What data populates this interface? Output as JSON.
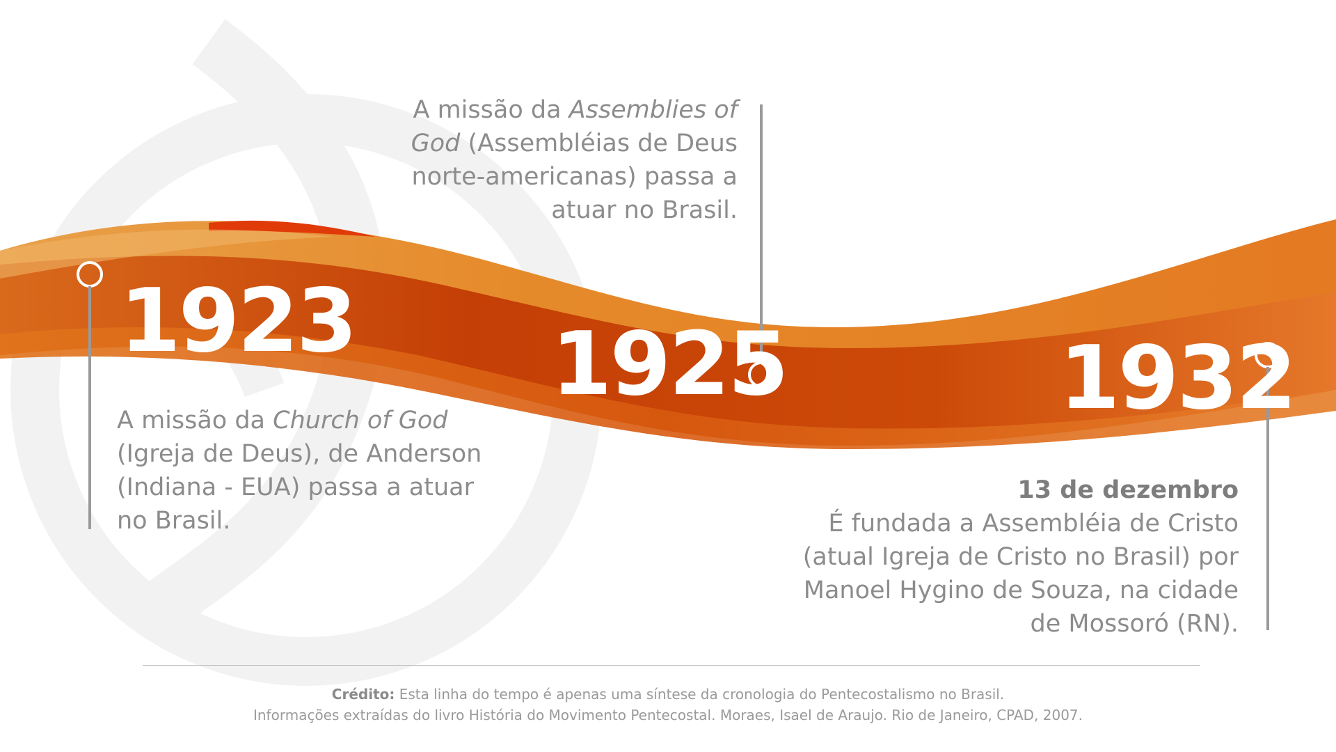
{
  "events": [
    {
      "year": "1923",
      "text_before": "A missão da ",
      "text_italic": "Church of God",
      "text_after": " (Igreja de Deus), de Anderson (Indiana - EUA) passa a atuar no Brasil."
    },
    {
      "year": "1925",
      "text_before": "A missão da ",
      "text_italic": "Assemblies of God",
      "text_after": " (Assembléias de Deus norte-americanas) passa a atuar no Brasil."
    },
    {
      "year": "1932",
      "date": "13 de dezembro",
      "text": "É fundada a Assembléia de Cristo (atual Igreja de Cristo no Brasil) por Manoel Hygino de Souza, na cidade de Mossoró (RN)."
    }
  ],
  "credit": {
    "label": "Crédito:",
    "line1": " Esta linha do tempo é apenas uma síntese da cronologia do Pentecostalismo no Brasil.",
    "line2": "Informações extraídas do livro História do Movimento Pentecostal. Moraes, Isael de Araujo. Rio de Janeiro, CPAD, 2007."
  },
  "colors": {
    "ribbon_dark": "#c33f06",
    "ribbon_mid": "#d9580f",
    "ribbon_light": "#e8862c",
    "ribbon_highlight": "#f0a53a",
    "marker": "#9a9a9a"
  }
}
